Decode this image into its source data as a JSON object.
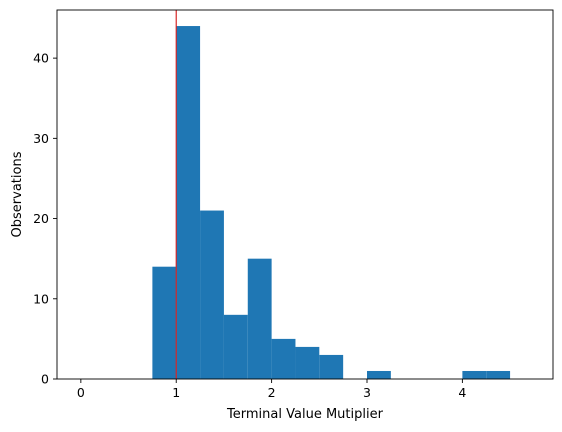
{
  "chart_data": {
    "type": "histogram",
    "title": "",
    "xlabel": "Terminal Value Mutiplier",
    "ylabel": "Observations",
    "xlim": [
      -0.25,
      4.95
    ],
    "ylim": [
      0,
      46
    ],
    "xticks": [
      0,
      1,
      2,
      3,
      4
    ],
    "yticks": [
      0,
      10,
      20,
      30,
      40
    ],
    "bin_width": 0.25,
    "bins": [
      {
        "x0": 0.75,
        "x1": 1.0,
        "count": 14
      },
      {
        "x0": 1.0,
        "x1": 1.25,
        "count": 44
      },
      {
        "x0": 1.25,
        "x1": 1.5,
        "count": 21
      },
      {
        "x0": 1.5,
        "x1": 1.75,
        "count": 8
      },
      {
        "x0": 1.75,
        "x1": 2.0,
        "count": 15
      },
      {
        "x0": 2.0,
        "x1": 2.25,
        "count": 5
      },
      {
        "x0": 2.25,
        "x1": 2.5,
        "count": 4
      },
      {
        "x0": 2.5,
        "x1": 2.75,
        "count": 3
      },
      {
        "x0": 3.0,
        "x1": 3.25,
        "count": 1
      },
      {
        "x0": 4.0,
        "x1": 4.25,
        "count": 1
      },
      {
        "x0": 4.25,
        "x1": 4.5,
        "count": 1
      }
    ],
    "reference_line": {
      "x": 1.0,
      "color": "#d62728"
    },
    "bar_color": "#1f77b4",
    "grid": false,
    "legend": "none"
  }
}
